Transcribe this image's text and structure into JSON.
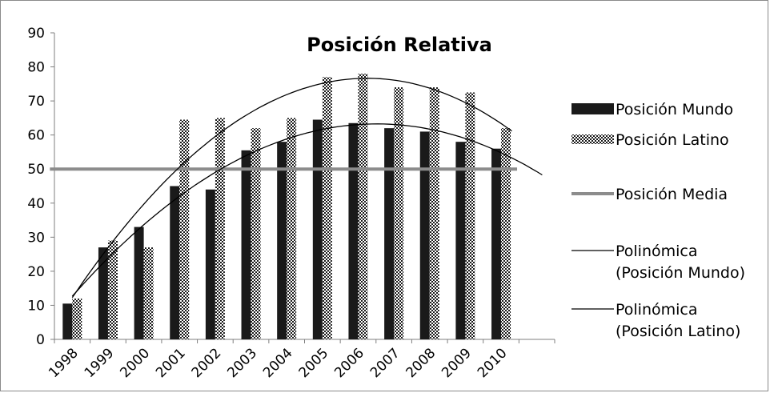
{
  "chart_data": {
    "type": "bar",
    "title": "Posición Relativa",
    "categories": [
      "1998",
      "1999",
      "2000",
      "2001",
      "2002",
      "2003",
      "2004",
      "2005",
      "2006",
      "2007",
      "2008",
      "2009",
      "2010"
    ],
    "ylim": [
      0,
      90
    ],
    "yticks": [
      0,
      10,
      20,
      30,
      40,
      50,
      60,
      70,
      80,
      90
    ],
    "series": [
      {
        "name": "Posición Mundo",
        "kind": "bar",
        "pattern": "solid",
        "color": "#1a1a1a",
        "values": [
          10.5,
          27,
          33,
          45,
          44,
          55.5,
          58,
          64.5,
          63.5,
          62,
          61,
          58,
          56
        ]
      },
      {
        "name": "Posición Latino",
        "kind": "bar",
        "pattern": "checkerboard",
        "color": "#1a1a1a",
        "values": [
          12,
          29,
          27,
          64.5,
          65,
          62,
          65,
          77,
          78,
          74,
          74,
          72.5,
          62
        ]
      },
      {
        "name": "Posición Media",
        "kind": "line",
        "color": "#8c8c8c",
        "values": [
          50,
          50,
          50,
          50,
          50,
          50,
          50,
          50,
          50,
          50,
          50,
          50,
          50
        ]
      }
    ],
    "trendlines": [
      {
        "name": "Polinómica (Posición Mundo)",
        "type": "polynomial",
        "color": "#000000"
      },
      {
        "name": "Polinómica (Posición Latino)",
        "type": "polynomial",
        "color": "#000000"
      }
    ],
    "legend": {
      "position": "right",
      "items": [
        {
          "label": "Posición Mundo",
          "swatch": "solid"
        },
        {
          "label": "Posición Latino",
          "swatch": "checkerboard"
        },
        {
          "label": "Posición Media",
          "swatch": "thick-line"
        },
        {
          "label_lines": [
            "Polinómica",
            "(Posición Mundo)"
          ],
          "swatch": "thin-line"
        },
        {
          "label_lines": [
            "Polinómica",
            "(Posición Latino)"
          ],
          "swatch": "thin-line"
        }
      ]
    },
    "grid": false
  }
}
